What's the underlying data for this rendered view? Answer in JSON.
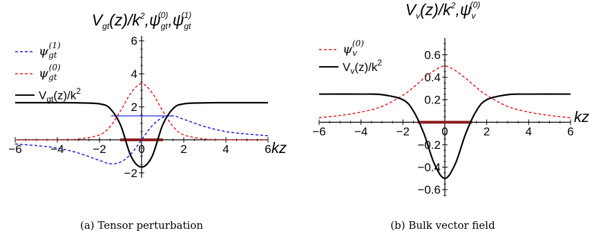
{
  "chart_data": [
    {
      "type": "line",
      "panel": "a",
      "title": {
        "prefix": "V",
        "prefix_sub": "gt",
        "mid": "(z)/k",
        "mid_sup": "2",
        "sep": ",",
        "psi": "ψ",
        "psi_sub": "gt",
        "psi0_sup": "(0)",
        "psi1_sup": "(1)"
      },
      "xlabel": "kz",
      "ylabel": "",
      "xlim": [
        -6,
        6
      ],
      "ylim": [
        -2.3,
        6.3
      ],
      "x_ticks": [
        -6,
        -4,
        -2,
        0,
        2,
        4,
        6
      ],
      "x_tick_labels": [
        "−6",
        "−4",
        "−2",
        "0",
        "2",
        "4",
        "6"
      ],
      "y_ticks": [
        -2,
        2,
        4,
        6
      ],
      "y_tick_labels": [
        "−2",
        "2",
        "4",
        "6"
      ],
      "grid": false,
      "legend_placement": "top-left",
      "colors": {
        "potential": "#000000",
        "psi0": "#e31a1c",
        "psi1": "#1a1ad6",
        "level_line": "#2f3fe0",
        "zero_mode_band": "#8b1a1a"
      },
      "legend": [
        {
          "symbol": "ψ",
          "sub": "gt",
          "sup": "(1)",
          "line_style": "dashed",
          "color": "#1a1ad6"
        },
        {
          "symbol": "ψ",
          "sub": "gt",
          "sup": "(0)",
          "line_style": "dashed",
          "color": "#e31a1c"
        },
        {
          "text": "V",
          "sub": "gt",
          "text_after": "(z)/k",
          "sup": "2",
          "line_style": "solid",
          "color": "#000000"
        }
      ],
      "series": [
        {
          "name": "V_gt(z)/k^2",
          "style": "solid",
          "color": "#000000",
          "x": [
            -6,
            -4,
            -3,
            -2,
            -1.5,
            -1,
            -0.5,
            0,
            0.5,
            1,
            1.5,
            2,
            3,
            4,
            6
          ],
          "y": [
            2.25,
            2.25,
            2.24,
            2.18,
            1.9,
            0.9,
            -1.0,
            -1.65,
            -1.0,
            0.9,
            1.9,
            2.18,
            2.24,
            2.25,
            2.25
          ]
        },
        {
          "name": "ψ_gt^(0)",
          "style": "dashed",
          "color": "#e31a1c",
          "x": [
            -6,
            -4,
            -3,
            -2,
            -1.5,
            -1,
            -0.5,
            0,
            0.5,
            1,
            1.5,
            2,
            3,
            4,
            6
          ],
          "y": [
            0.0,
            0.01,
            0.05,
            0.3,
            0.8,
            1.75,
            2.85,
            3.4,
            2.85,
            1.75,
            0.8,
            0.3,
            0.05,
            0.01,
            0.0
          ]
        },
        {
          "name": "ψ_gt^(1)",
          "style": "dashed",
          "color": "#1a1ad6",
          "x": [
            -6,
            -5,
            -4,
            -3,
            -2,
            -1.5,
            -1,
            -0.5,
            0,
            0.5,
            1,
            1.5,
            2,
            3,
            4,
            5,
            6
          ],
          "y": [
            -0.25,
            -0.35,
            -0.5,
            -0.8,
            -1.25,
            -1.45,
            -1.35,
            -0.85,
            0.0,
            0.85,
            1.35,
            1.45,
            1.25,
            0.8,
            0.5,
            0.35,
            0.25
          ]
        }
      ],
      "reference_lines": [
        {
          "type": "horizontal",
          "y": 1.45,
          "x_range": [
            -1.45,
            1.45
          ],
          "color": "#2f3fe0"
        }
      ],
      "highlight_band": {
        "y": 0.0,
        "x_range": [
          -1.0,
          1.0
        ],
        "color": "#8b1a1a"
      },
      "caption": "(a) Tensor perturbation"
    },
    {
      "type": "line",
      "panel": "b",
      "title": {
        "prefix": "V",
        "prefix_sub": "v",
        "mid": "(z)/k",
        "mid_sup": "2",
        "sep": ",",
        "psi": "ψ",
        "psi_sub": "v",
        "psi0_sup": "(0)"
      },
      "xlabel": "kz",
      "ylabel": "",
      "xlim": [
        -6,
        6
      ],
      "ylim": [
        -0.66,
        0.75
      ],
      "x_ticks": [
        -6,
        -4,
        -2,
        0,
        2,
        4,
        6
      ],
      "x_tick_labels": [
        "−6",
        "−4",
        "−2",
        "0",
        "2",
        "4",
        "6"
      ],
      "y_ticks": [
        -0.6,
        -0.4,
        -0.2,
        0.2,
        0.4,
        0.6
      ],
      "y_tick_labels": [
        "−0.6",
        "−0.4",
        "−0.2",
        "0.2",
        "0.4",
        "0.6"
      ],
      "grid": false,
      "legend_placement": "top-left",
      "colors": {
        "potential": "#000000",
        "psi0": "#e31a1c",
        "zero_mode_band": "#8b1a1a"
      },
      "legend": [
        {
          "symbol": "ψ",
          "sub": "v",
          "sup": "(0)",
          "line_style": "dashed",
          "color": "#e31a1c"
        },
        {
          "text": "V",
          "sub": "v",
          "text_after": "(z)/k",
          "sup": "2",
          "line_style": "solid",
          "color": "#000000"
        }
      ],
      "series": [
        {
          "name": "V_v(z)/k^2",
          "style": "solid",
          "color": "#000000",
          "x": [
            -6,
            -4,
            -3,
            -2,
            -1.5,
            -1,
            -0.5,
            0,
            0.5,
            1,
            1.5,
            2,
            3,
            4,
            6
          ],
          "y": [
            0.25,
            0.25,
            0.245,
            0.2,
            0.1,
            -0.1,
            -0.37,
            -0.5,
            -0.37,
            -0.1,
            0.1,
            0.2,
            0.245,
            0.25,
            0.25
          ]
        },
        {
          "name": "ψ_v^(0)",
          "style": "dashed",
          "color": "#e31a1c",
          "x": [
            -6,
            -5,
            -4,
            -3,
            -2,
            -1.5,
            -1,
            -0.5,
            0,
            0.5,
            1,
            1.5,
            2,
            3,
            4,
            5,
            6
          ],
          "y": [
            0.04,
            0.06,
            0.09,
            0.14,
            0.24,
            0.31,
            0.39,
            0.46,
            0.5,
            0.46,
            0.39,
            0.31,
            0.24,
            0.14,
            0.09,
            0.06,
            0.04
          ]
        }
      ],
      "highlight_band": {
        "y": 0.0,
        "x_range": [
          -1.3,
          1.3
        ],
        "color": "#8b1a1a"
      },
      "caption": "(b) Bulk vector field"
    }
  ]
}
